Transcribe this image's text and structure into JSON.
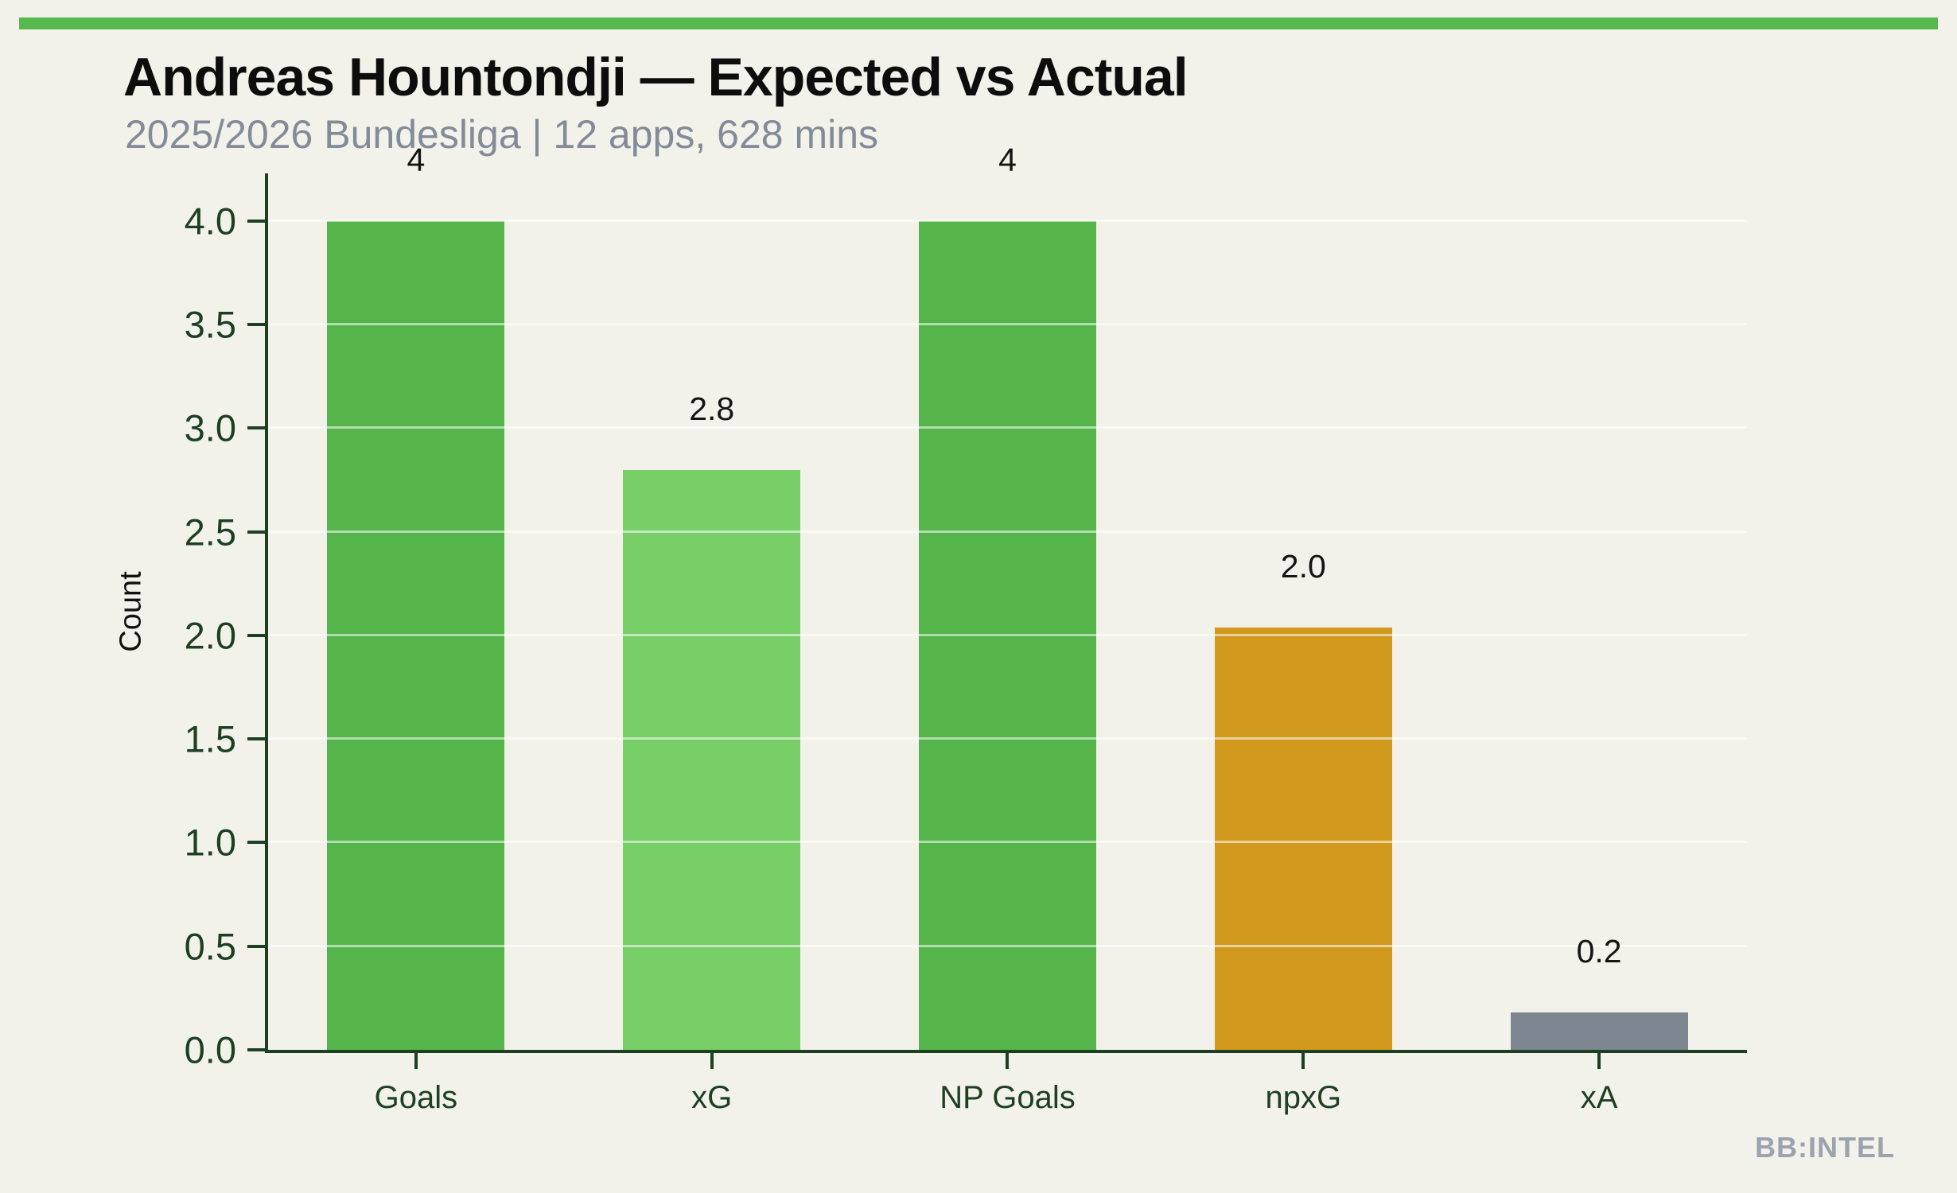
{
  "page": {
    "background_color": "#f2f2eb",
    "accent_bar_color": "#57ba4e",
    "watermark": "BB:INTEL",
    "watermark_color": "#9aa3ae"
  },
  "chart_data": {
    "type": "bar",
    "title": "Andreas Hountondji — Expected vs Actual",
    "subtitle": "2025/2026 Bundesliga | 12 apps, 628 mins",
    "categories": [
      "Goals",
      "xG",
      "NP Goals",
      "npxG",
      "xA"
    ],
    "values": [
      4,
      2.8,
      4,
      2.04,
      0.18
    ],
    "value_labels": [
      "4",
      "2.8",
      "4",
      "2.0",
      "0.2"
    ],
    "bar_colors": [
      "#55b54b",
      "#78cf67",
      "#55b54b",
      "#d2991f",
      "#7d8591"
    ],
    "xlabel": "",
    "ylabel": "Count",
    "ylim": [
      0,
      4.23
    ],
    "yticks": [
      0,
      0.5,
      1,
      1.5,
      2,
      2.5,
      3,
      3.5,
      4
    ],
    "ytick_labels": [
      "0.0",
      "0.5",
      "1.0",
      "1.5",
      "2.0",
      "2.5",
      "3.0",
      "3.5",
      "4.0"
    ],
    "grid": "horizontal gridlines at y ticks, light, drawn over bars",
    "legend": "none",
    "axis_color": "#1d4023",
    "subtitle_color": "#828b98",
    "bar_width_fraction": 0.6
  }
}
